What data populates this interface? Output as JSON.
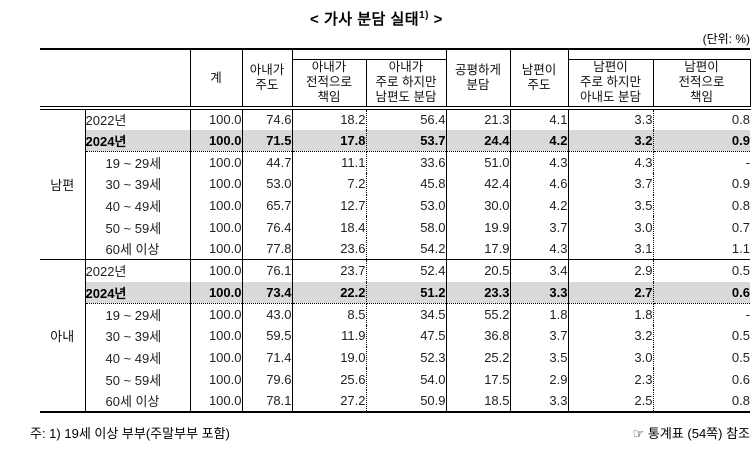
{
  "title": {
    "pre": "< 가사 분담 실태",
    "sup": "1)",
    "post": " >"
  },
  "unit_note": "(단위: %)",
  "table": {
    "col_headers": [
      "계",
      "아내가\n주도",
      "아내가\n전적으로\n책임",
      "아내가\n주로 하지만\n남편도 분담",
      "공평하게\n분담",
      "남편이\n주도",
      "남편이\n주로 하지만\n아내도 분담",
      "남편이\n전적으로\n책임"
    ],
    "sections": [
      {
        "group": "남편",
        "rows": [
          {
            "label": "2022년",
            "indent": false,
            "bold": false,
            "shaded": false,
            "values": [
              "100.0",
              "74.6",
              "18.2",
              "56.4",
              "21.3",
              "4.1",
              "3.3",
              "0.8"
            ]
          },
          {
            "label": "2024년",
            "indent": false,
            "bold": true,
            "shaded": true,
            "values": [
              "100.0",
              "71.5",
              "17.8",
              "53.7",
              "24.4",
              "4.2",
              "3.2",
              "0.9"
            ]
          },
          {
            "label": "19 ~ 29세",
            "indent": true,
            "bold": false,
            "shaded": false,
            "values": [
              "100.0",
              "44.7",
              "11.1",
              "33.6",
              "51.0",
              "4.3",
              "4.3",
              "-"
            ]
          },
          {
            "label": "30 ~ 39세",
            "indent": true,
            "bold": false,
            "shaded": false,
            "values": [
              "100.0",
              "53.0",
              "7.2",
              "45.8",
              "42.4",
              "4.6",
              "3.7",
              "0.9"
            ]
          },
          {
            "label": "40 ~ 49세",
            "indent": true,
            "bold": false,
            "shaded": false,
            "values": [
              "100.0",
              "65.7",
              "12.7",
              "53.0",
              "30.0",
              "4.2",
              "3.5",
              "0.8"
            ]
          },
          {
            "label": "50 ~ 59세",
            "indent": true,
            "bold": false,
            "shaded": false,
            "values": [
              "100.0",
              "76.4",
              "18.4",
              "58.0",
              "19.9",
              "3.7",
              "3.0",
              "0.7"
            ]
          },
          {
            "label": "60세 이상",
            "indent": true,
            "bold": false,
            "shaded": false,
            "values": [
              "100.0",
              "77.8",
              "23.6",
              "54.2",
              "17.9",
              "4.3",
              "3.1",
              "1.1"
            ]
          }
        ]
      },
      {
        "group": "아내",
        "rows": [
          {
            "label": "2022년",
            "indent": false,
            "bold": false,
            "shaded": false,
            "values": [
              "100.0",
              "76.1",
              "23.7",
              "52.4",
              "20.5",
              "3.4",
              "2.9",
              "0.5"
            ]
          },
          {
            "label": "2024년",
            "indent": false,
            "bold": true,
            "shaded": true,
            "values": [
              "100.0",
              "73.4",
              "22.2",
              "51.2",
              "23.3",
              "3.3",
              "2.7",
              "0.6"
            ]
          },
          {
            "label": "19 ~ 29세",
            "indent": true,
            "bold": false,
            "shaded": false,
            "values": [
              "100.0",
              "43.0",
              "8.5",
              "34.5",
              "55.2",
              "1.8",
              "1.8",
              "-"
            ]
          },
          {
            "label": "30 ~ 39세",
            "indent": true,
            "bold": false,
            "shaded": false,
            "values": [
              "100.0",
              "59.5",
              "11.9",
              "47.5",
              "36.8",
              "3.7",
              "3.2",
              "0.5"
            ]
          },
          {
            "label": "40 ~ 49세",
            "indent": true,
            "bold": false,
            "shaded": false,
            "values": [
              "100.0",
              "71.4",
              "19.0",
              "52.3",
              "25.2",
              "3.5",
              "3.0",
              "0.5"
            ]
          },
          {
            "label": "50 ~ 59세",
            "indent": true,
            "bold": false,
            "shaded": false,
            "values": [
              "100.0",
              "79.6",
              "25.6",
              "54.0",
              "17.5",
              "2.9",
              "2.3",
              "0.6"
            ]
          },
          {
            "label": "60세 이상",
            "indent": true,
            "bold": false,
            "shaded": false,
            "values": [
              "100.0",
              "78.1",
              "27.2",
              "50.9",
              "18.5",
              "3.3",
              "2.5",
              "0.8"
            ]
          }
        ]
      }
    ]
  },
  "footnote": "주: 1) 19세 이상 부부(주말부부 포함)",
  "reference": {
    "icon": "☞",
    "text": "통계표 (54쪽) 참조"
  }
}
